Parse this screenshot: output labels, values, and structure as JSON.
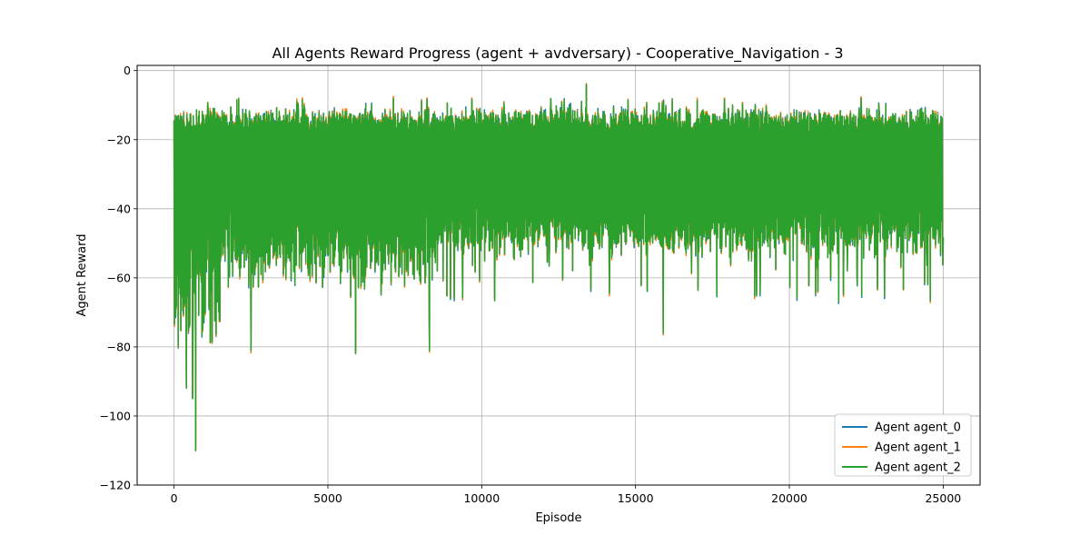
{
  "chart_data": {
    "type": "line",
    "title": "All Agents Reward Progress (agent + avdversary) - Cooperative_Navigation - 3",
    "xlabel": "Episode",
    "ylabel": "Agent Reward",
    "xlim": [
      -1200,
      26200
    ],
    "ylim": [
      -120,
      1.5
    ],
    "x_ticks": [
      0,
      5000,
      10000,
      15000,
      20000,
      25000
    ],
    "y_ticks": [
      0,
      -20,
      -40,
      -60,
      -80,
      -100,
      -120
    ],
    "grid": true,
    "legend_position": "lower-right",
    "x_range": [
      0,
      25000
    ],
    "series": [
      {
        "name": "Agent agent_0",
        "color": "#1f77b4",
        "summary": {
          "upper_envelope": -13,
          "lower_envelope": -45,
          "max": -7,
          "min": -110
        }
      },
      {
        "name": "Agent agent_1",
        "color": "#ff7f0e",
        "summary": {
          "upper_envelope": -13,
          "lower_envelope": -45,
          "max": -7,
          "min": -110
        }
      },
      {
        "name": "Agent agent_2",
        "color": "#2ca02c",
        "summary": {
          "upper_envelope": -13,
          "lower_envelope": -45,
          "max": -4,
          "min": -110
        }
      }
    ],
    "notable_points": [
      {
        "x": 700,
        "y": -110
      },
      {
        "x": 600,
        "y": -95
      },
      {
        "x": 400,
        "y": -92
      },
      {
        "x": 2500,
        "y": -81
      },
      {
        "x": 5900,
        "y": -82
      },
      {
        "x": 8300,
        "y": -81
      },
      {
        "x": 15900,
        "y": -76
      },
      {
        "x": 13400,
        "y": -4
      },
      {
        "x": 2100,
        "y": -8
      },
      {
        "x": 22200,
        "y": -59
      },
      {
        "x": 24500,
        "y": -62
      }
    ]
  }
}
